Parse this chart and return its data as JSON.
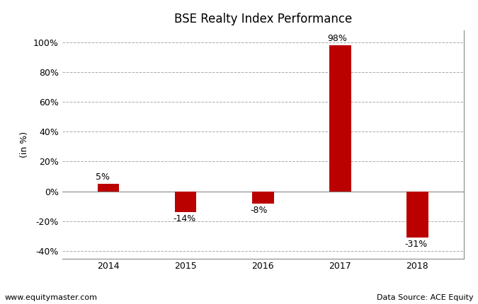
{
  "title": "BSE Realty Index Performance",
  "categories": [
    "2014",
    "2015",
    "2016",
    "2017",
    "2018"
  ],
  "values": [
    5,
    -14,
    -8,
    98,
    -31
  ],
  "bar_color": "#BB0000",
  "ylim": [
    -45,
    108
  ],
  "yticks": [
    -40,
    -20,
    0,
    20,
    40,
    60,
    80,
    100
  ],
  "ylabel": "(in %)",
  "background_color": "#FFFFFF",
  "grid_color": "#AAAAAA",
  "footer_left": "www.equitymaster.com",
  "footer_right": "Data Source: ACE Equity",
  "title_fontsize": 12,
  "label_fontsize": 9,
  "tick_fontsize": 9,
  "footer_fontsize": 8,
  "bar_width": 0.28
}
